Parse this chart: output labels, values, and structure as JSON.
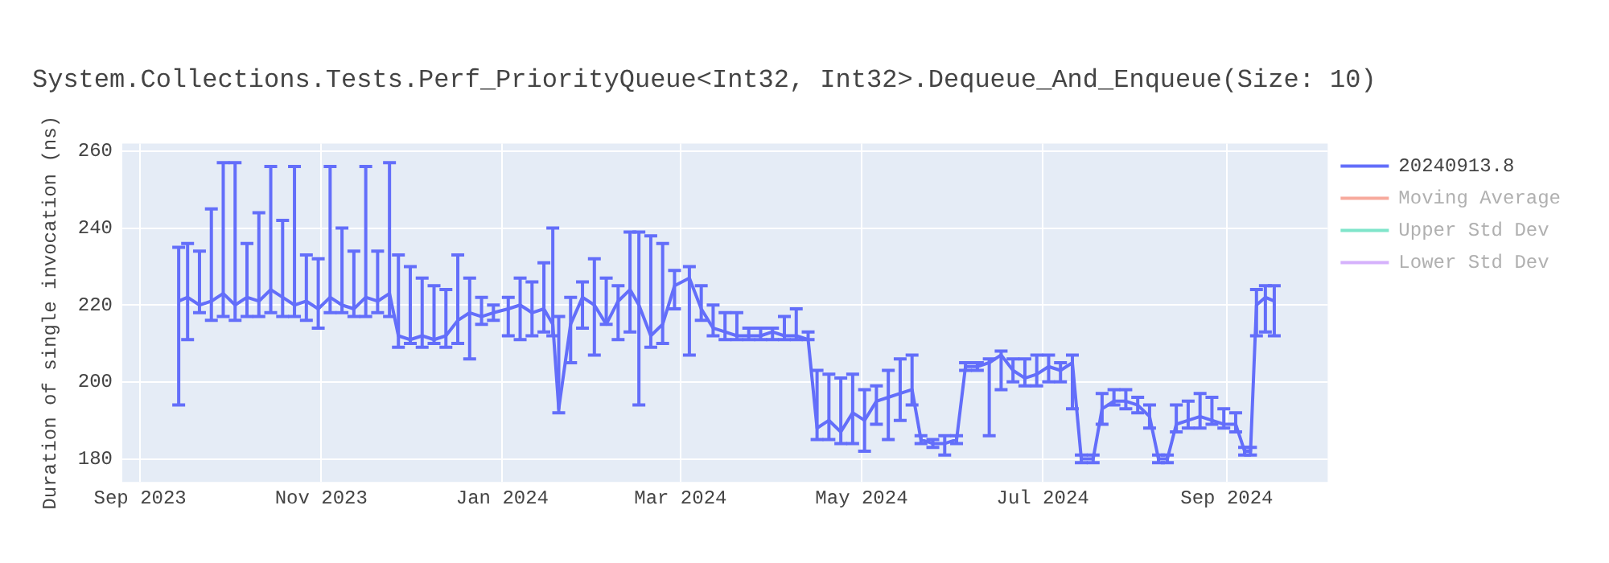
{
  "chart_data": {
    "type": "line",
    "title": "System.Collections.Tests.Perf_PriorityQueue<Int32, Int32>.Dequeue_And_Enqueue(Size: 10)",
    "ylabel": "Duration of single invocation (ns)",
    "xlim": [
      "2023-08-26",
      "2024-10-05"
    ],
    "xticks": [
      {
        "value": "2023-09-01",
        "label": "Sep 2023"
      },
      {
        "value": "2023-11-01",
        "label": "Nov 2023"
      },
      {
        "value": "2024-01-01",
        "label": "Jan 2024"
      },
      {
        "value": "2024-03-01",
        "label": "Mar 2024"
      },
      {
        "value": "2024-05-01",
        "label": "May 2024"
      },
      {
        "value": "2024-07-01",
        "label": "Jul 2024"
      },
      {
        "value": "2024-09-01",
        "label": "Sep 2024"
      }
    ],
    "ylim": [
      174,
      262
    ],
    "yticks": [
      180,
      200,
      220,
      240,
      260
    ],
    "grid": true,
    "legend": "top right",
    "marker": "none",
    "line_style": "solid",
    "series": [
      {
        "name": "20240913.8",
        "color": "#636efa",
        "x": [
          "2023-09-14",
          "2023-09-17",
          "2023-09-21",
          "2023-09-25",
          "2023-09-29",
          "2023-10-03",
          "2023-10-07",
          "2023-10-11",
          "2023-10-15",
          "2023-10-19",
          "2023-10-23",
          "2023-10-27",
          "2023-10-31",
          "2023-11-04",
          "2023-11-08",
          "2023-11-12",
          "2023-11-16",
          "2023-11-20",
          "2023-11-24",
          "2023-11-27",
          "2023-12-01",
          "2023-12-05",
          "2023-12-09",
          "2023-12-13",
          "2023-12-17",
          "2023-12-21",
          "2023-12-25",
          "2023-12-29",
          "2024-01-03",
          "2024-01-07",
          "2024-01-11",
          "2024-01-15",
          "2024-01-18",
          "2024-01-20",
          "2024-01-24",
          "2024-01-28",
          "2024-02-01",
          "2024-02-05",
          "2024-02-09",
          "2024-02-13",
          "2024-02-16",
          "2024-02-20",
          "2024-02-24",
          "2024-02-28",
          "2024-03-04",
          "2024-03-08",
          "2024-03-12",
          "2024-03-16",
          "2024-03-20",
          "2024-03-24",
          "2024-03-28",
          "2024-04-01",
          "2024-04-05",
          "2024-04-09",
          "2024-04-13",
          "2024-04-16",
          "2024-04-20",
          "2024-04-24",
          "2024-04-28",
          "2024-05-02",
          "2024-05-06",
          "2024-05-10",
          "2024-05-14",
          "2024-05-18",
          "2024-05-21",
          "2024-05-25",
          "2024-05-29",
          "2024-06-02",
          "2024-06-05",
          "2024-06-09",
          "2024-06-13",
          "2024-06-17",
          "2024-06-21",
          "2024-06-25",
          "2024-06-29",
          "2024-07-03",
          "2024-07-07",
          "2024-07-11",
          "2024-07-14",
          "2024-07-18",
          "2024-07-21",
          "2024-07-25",
          "2024-07-29",
          "2024-08-02",
          "2024-08-06",
          "2024-08-09",
          "2024-08-12",
          "2024-08-15",
          "2024-08-19",
          "2024-08-23",
          "2024-08-27",
          "2024-08-31",
          "2024-09-04",
          "2024-09-07",
          "2024-09-09",
          "2024-09-11",
          "2024-09-14",
          "2024-09-17"
        ],
        "values": [
          221,
          222,
          220,
          221,
          223,
          220,
          222,
          221,
          224,
          222,
          220,
          221,
          219,
          222,
          220,
          219,
          222,
          221,
          223,
          212,
          211,
          212,
          211,
          212,
          216,
          218,
          217,
          218,
          219,
          220,
          218,
          219,
          215,
          193,
          215,
          222,
          220,
          215,
          221,
          224,
          220,
          212,
          215,
          225,
          227,
          219,
          214,
          213,
          212,
          212,
          212,
          213,
          212,
          212,
          211,
          188,
          190,
          187,
          192,
          190,
          195,
          196,
          197,
          198,
          185,
          184,
          184,
          185,
          204,
          204,
          205,
          207,
          203,
          201,
          202,
          204,
          203,
          205,
          180,
          180,
          193,
          195,
          195,
          194,
          191,
          180,
          180,
          189,
          190,
          191,
          190,
          189,
          189,
          182,
          182,
          220,
          222,
          221
        ],
        "errors": [
          [
            194,
            235
          ],
          [
            211,
            236
          ],
          [
            218,
            234
          ],
          [
            216,
            245
          ],
          [
            217,
            257
          ],
          [
            216,
            257
          ],
          [
            217,
            236
          ],
          [
            217,
            244
          ],
          [
            218,
            256
          ],
          [
            217,
            242
          ],
          [
            217,
            256
          ],
          [
            216,
            233
          ],
          [
            214,
            232
          ],
          [
            218,
            256
          ],
          [
            218,
            240
          ],
          [
            217,
            234
          ],
          [
            217,
            256
          ],
          [
            218,
            234
          ],
          [
            217,
            257
          ],
          [
            209,
            233
          ],
          [
            210,
            230
          ],
          [
            209,
            227
          ],
          [
            210,
            225
          ],
          [
            209,
            224
          ],
          [
            210,
            233
          ],
          [
            206,
            227
          ],
          [
            215,
            222
          ],
          [
            216,
            220
          ],
          [
            212,
            222
          ],
          [
            211,
            227
          ],
          [
            212,
            226
          ],
          [
            213,
            231
          ],
          [
            212,
            240
          ],
          [
            192,
            217
          ],
          [
            205,
            222
          ],
          [
            214,
            226
          ],
          [
            207,
            232
          ],
          [
            215,
            227
          ],
          [
            211,
            225
          ],
          [
            213,
            239
          ],
          [
            194,
            239
          ],
          [
            209,
            238
          ],
          [
            210,
            236
          ],
          [
            219,
            229
          ],
          [
            207,
            230
          ],
          [
            216,
            225
          ],
          [
            212,
            220
          ],
          [
            211,
            218
          ],
          [
            211,
            218
          ],
          [
            211,
            214
          ],
          [
            211,
            214
          ],
          [
            211,
            214
          ],
          [
            211,
            217
          ],
          [
            211,
            219
          ],
          [
            211,
            213
          ],
          [
            185,
            203
          ],
          [
            185,
            202
          ],
          [
            184,
            201
          ],
          [
            184,
            202
          ],
          [
            182,
            198
          ],
          [
            189,
            199
          ],
          [
            185,
            203
          ],
          [
            190,
            206
          ],
          [
            194,
            207
          ],
          [
            184,
            186
          ],
          [
            183,
            185
          ],
          [
            181,
            186
          ],
          [
            184,
            186
          ],
          [
            203,
            205
          ],
          [
            203,
            205
          ],
          [
            186,
            206
          ],
          [
            198,
            208
          ],
          [
            200,
            206
          ],
          [
            199,
            206
          ],
          [
            199,
            207
          ],
          [
            200,
            207
          ],
          [
            200,
            205
          ],
          [
            193,
            207
          ],
          [
            179,
            181
          ],
          [
            179,
            181
          ],
          [
            189,
            197
          ],
          [
            194,
            198
          ],
          [
            193,
            198
          ],
          [
            192,
            196
          ],
          [
            188,
            194
          ],
          [
            179,
            181
          ],
          [
            179,
            181
          ],
          [
            187,
            194
          ],
          [
            188,
            195
          ],
          [
            188,
            197
          ],
          [
            189,
            196
          ],
          [
            188,
            193
          ],
          [
            187,
            192
          ],
          [
            181,
            183
          ],
          [
            181,
            183
          ],
          [
            212,
            224
          ],
          [
            213,
            225
          ],
          [
            212,
            225
          ]
        ]
      },
      {
        "name": "Moving Average",
        "color": "#ef553b"
      },
      {
        "name": "Upper Std Dev",
        "color": "#00cc96"
      },
      {
        "name": "Lower Std Dev",
        "color": "#ab63fa"
      }
    ]
  }
}
